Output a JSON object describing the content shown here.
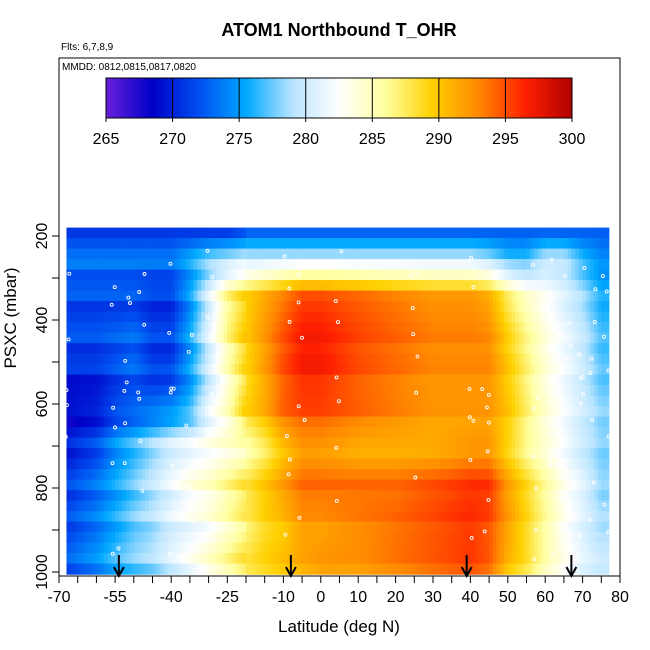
{
  "chart_data": {
    "type": "heatmap",
    "title": "ATOM1 Northbound T_OHR",
    "flights_note": "Flts: 6,7,8,9",
    "dates_note": "MMDD: 0812,0815,0817,0820",
    "xlabel": "Latitude (deg N)",
    "ylabel": "PSXC (mbar)",
    "xlim": [
      -70,
      80
    ],
    "ylim": [
      1000,
      150
    ],
    "x_ticks": [
      -70,
      -55,
      -40,
      -25,
      -10,
      0,
      10,
      20,
      30,
      40,
      50,
      60,
      70,
      80
    ],
    "y_ticks": [
      200,
      400,
      600,
      800,
      1000
    ],
    "colorbar": {
      "min": 265,
      "max": 300,
      "ticks": [
        265,
        270,
        275,
        280,
        285,
        290,
        295,
        300
      ],
      "palette": [
        "#6a1fd8",
        "#0000c8",
        "#0050f0",
        "#00a8ff",
        "#b8e4ff",
        "#ffffff",
        "#ffffa0",
        "#ffd000",
        "#ff8800",
        "#ff2000",
        "#b00000"
      ]
    },
    "temperature_by_latitude": {
      "latitude": [
        -68,
        -60,
        -55,
        -50,
        -45,
        -40,
        -35,
        -30,
        -25,
        -20,
        -15,
        -10,
        -5,
        0,
        10,
        20,
        30,
        40,
        45,
        50,
        55,
        60,
        65,
        70,
        75,
        80
      ],
      "levels": [
        {
          "pressure_mbar": 190,
          "temps_k": [
            272,
            272,
            272,
            272,
            272,
            272,
            272,
            272,
            272,
            273,
            273,
            273,
            273,
            273,
            273,
            273,
            273,
            273,
            273,
            273,
            273,
            273,
            273,
            273,
            273,
            273
          ]
        },
        {
          "pressure_mbar": 250,
          "temps_k": [
            273,
            273,
            273,
            273,
            273,
            273,
            275,
            277,
            278,
            279,
            279,
            279,
            279,
            279,
            279,
            279,
            279,
            279,
            278,
            276,
            276,
            279,
            279,
            276,
            274,
            274
          ]
        },
        {
          "pressure_mbar": 350,
          "temps_k": [
            272,
            272,
            272,
            272,
            271,
            271,
            275,
            281,
            287,
            290,
            292,
            294,
            296,
            296,
            295,
            294,
            293,
            293,
            292,
            288,
            285,
            283,
            281,
            279,
            276,
            276
          ]
        },
        {
          "pressure_mbar": 500,
          "temps_k": [
            271,
            271,
            272,
            273,
            271,
            271,
            275,
            280,
            285,
            289,
            292,
            295,
            297,
            297,
            295,
            294,
            293,
            293,
            293,
            290,
            287,
            284,
            282,
            280,
            277,
            277
          ]
        },
        {
          "pressure_mbar": 620,
          "temps_k": [
            268,
            269,
            271,
            272,
            273,
            274,
            276,
            281,
            284,
            289,
            291,
            294,
            295,
            295,
            294,
            293,
            292,
            292,
            292,
            290,
            287,
            284,
            282,
            280,
            278,
            278
          ]
        },
        {
          "pressure_mbar": 700,
          "temps_k": [
            270,
            272,
            275,
            277,
            279,
            281,
            282,
            283,
            284,
            285,
            287,
            290,
            292,
            292,
            291,
            291,
            291,
            292,
            292,
            289,
            286,
            284,
            282,
            280,
            278,
            278
          ]
        },
        {
          "pressure_mbar": 800,
          "temps_k": [
            271,
            273,
            275,
            277,
            279,
            281,
            283,
            284,
            286,
            288,
            290,
            292,
            294,
            294,
            294,
            294,
            295,
            296,
            296,
            292,
            289,
            286,
            283,
            281,
            278,
            278
          ]
        },
        {
          "pressure_mbar": 900,
          "temps_k": [
            272,
            274,
            276,
            278,
            279,
            281,
            282,
            283,
            285,
            287,
            289,
            290,
            292,
            292,
            293,
            294,
            295,
            296,
            295,
            292,
            289,
            286,
            283,
            281,
            279,
            279
          ]
        },
        {
          "pressure_mbar": 1000,
          "temps_k": [
            272,
            274,
            276,
            277,
            278,
            280,
            282,
            284,
            286,
            288,
            289,
            290,
            291,
            292,
            292,
            293,
            294,
            295,
            294,
            290,
            288,
            285,
            283,
            281,
            280,
            280
          ]
        }
      ]
    },
    "flight_arrows_latitude": [
      -54,
      -8,
      39,
      67
    ]
  }
}
